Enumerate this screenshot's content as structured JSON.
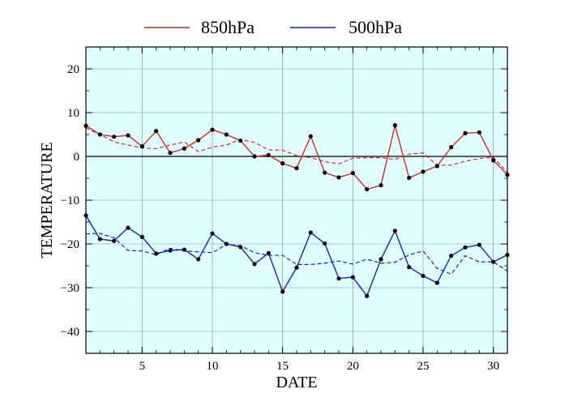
{
  "chart_data": {
    "type": "line",
    "title": "",
    "xlabel": "DATE",
    "ylabel": "TEMPERATURE",
    "xlim": [
      1,
      31
    ],
    "ylim": [
      -45,
      25
    ],
    "xticks": [
      5,
      10,
      15,
      20,
      25,
      30
    ],
    "yticks": [
      -40,
      -30,
      -20,
      -10,
      0,
      10,
      20
    ],
    "x_minor_step": 1,
    "y_minor_step": 5,
    "grid": true,
    "zero_line": true,
    "legend_position": "top-center",
    "background_color": "#e0ffff",
    "x": [
      1,
      2,
      3,
      4,
      5,
      6,
      7,
      8,
      9,
      10,
      11,
      12,
      13,
      14,
      15,
      16,
      17,
      18,
      19,
      20,
      21,
      22,
      23,
      24,
      25,
      26,
      27,
      28,
      29,
      30,
      31
    ],
    "series": [
      {
        "name": "850hPa",
        "color": "#dd2222",
        "values": [
          7.0,
          5.0,
          4.5,
          4.8,
          2.3,
          5.8,
          0.8,
          1.8,
          3.7,
          6.1,
          5.0,
          3.6,
          0.0,
          0.3,
          -1.6,
          -2.7,
          4.6,
          -3.7,
          -4.8,
          -3.8,
          -7.5,
          -6.6,
          7.1,
          -4.9,
          -3.5,
          -2.2,
          2.1,
          5.3,
          5.5,
          -0.9,
          -4.2
        ],
        "normal": [
          6.5,
          5.0,
          3.3,
          2.6,
          1.9,
          1.8,
          2.6,
          3.3,
          1.1,
          2.1,
          2.6,
          3.9,
          3.2,
          1.5,
          1.4,
          0.2,
          -0.3,
          -1.2,
          -1.7,
          -0.4,
          -0.3,
          -0.3,
          -0.7,
          0.5,
          0.8,
          -2.0,
          -2.0,
          -1.1,
          -0.5,
          -0.2,
          -3.7
        ]
      },
      {
        "name": "500hPa",
        "color": "#1122cc",
        "values": [
          -13.5,
          -18.9,
          -19.3,
          -16.3,
          -18.4,
          -22.2,
          -21.5,
          -21.3,
          -23.5,
          -17.6,
          -20.0,
          -20.7,
          -24.6,
          -22.1,
          -30.9,
          -25.4,
          -17.4,
          -19.9,
          -27.9,
          -27.6,
          -31.9,
          -23.5,
          -17.0,
          -25.3,
          -27.3,
          -28.9,
          -22.7,
          -20.8,
          -20.2,
          -24.1,
          -22.5
        ],
        "normal": [
          -17.7,
          -17.6,
          -18.6,
          -21.5,
          -21.6,
          -22.5,
          -21.0,
          -21.6,
          -21.8,
          -22.0,
          -20.1,
          -20.4,
          -22.0,
          -22.6,
          -22.6,
          -24.7,
          -24.7,
          -24.4,
          -23.9,
          -24.6,
          -23.5,
          -24.4,
          -24.2,
          -22.5,
          -21.6,
          -25.6,
          -26.9,
          -22.7,
          -24.1,
          -24.1,
          -26.2
        ]
      }
    ]
  }
}
